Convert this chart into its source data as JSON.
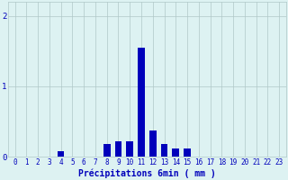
{
  "hours": [
    0,
    1,
    2,
    3,
    4,
    5,
    6,
    7,
    8,
    9,
    10,
    11,
    12,
    13,
    14,
    15,
    16,
    17,
    18,
    19,
    20,
    21,
    22,
    23
  ],
  "values": [
    0,
    0,
    0,
    0,
    0.08,
    0,
    0,
    0,
    0.18,
    0.22,
    0.22,
    1.55,
    0.38,
    0.18,
    0.12,
    0.12,
    0,
    0,
    0,
    0,
    0,
    0,
    0,
    0
  ],
  "bar_color": "#0000bb",
  "bg_color": "#ddf2f2",
  "grid_color": "#b0c8c8",
  "tick_color": "#0000bb",
  "xlabel": "Précipitations 6min ( mm )",
  "xlabel_fontsize": 7,
  "tick_fontsize": 5.5,
  "ylim": [
    0,
    2.2
  ],
  "yticks": [
    0,
    1,
    2
  ],
  "xlim": [
    -0.6,
    23.6
  ],
  "figwidth": 3.2,
  "figheight": 2.0,
  "dpi": 100
}
